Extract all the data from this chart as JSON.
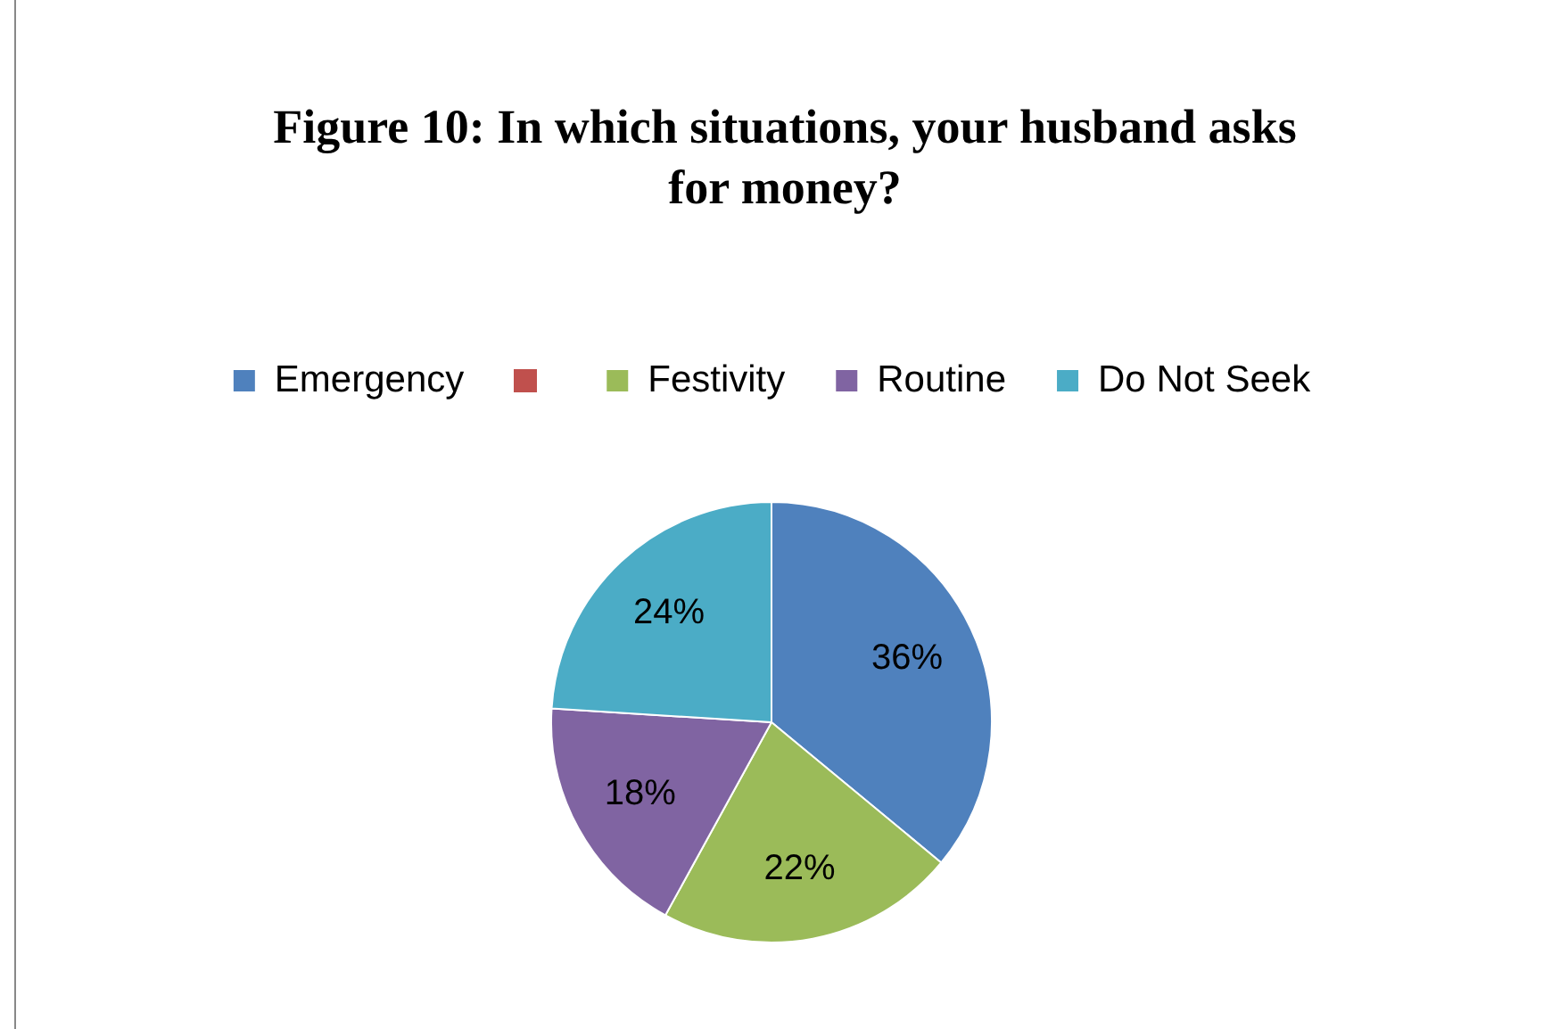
{
  "chart_data": {
    "type": "pie",
    "title": "Figure 10: In which situations, your husband asks for money?",
    "categories": [
      "Emergency",
      null,
      "Festivity",
      "Routine",
      "Do Not Seek"
    ],
    "values": [
      36,
      0,
      22,
      18,
      24
    ],
    "colors": [
      "#4f81bd",
      "#c0504d",
      "#9bbb59",
      "#8064a2",
      "#4bacc6"
    ],
    "value_labels": [
      "36%",
      null,
      "22%",
      "18%",
      "24%"
    ],
    "legend": "top"
  }
}
